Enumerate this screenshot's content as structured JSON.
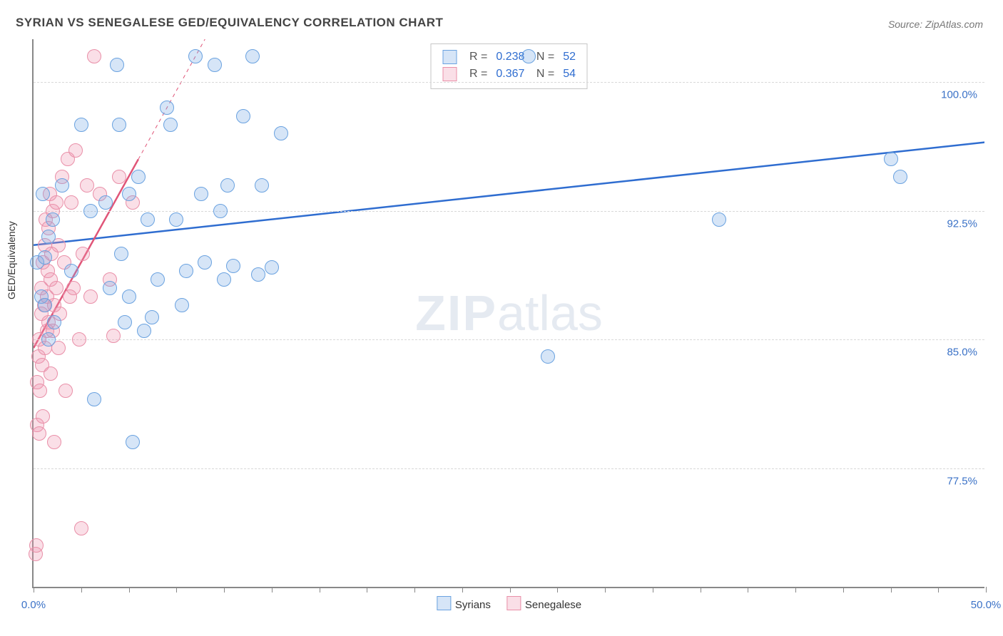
{
  "title": "SYRIAN VS SENEGALESE GED/EQUIVALENCY CORRELATION CHART",
  "source": "Source: ZipAtlas.com",
  "watermark_bold": "ZIP",
  "watermark_light": "atlas",
  "chart": {
    "type": "scatter",
    "ylabel": "GED/Equivalency",
    "xlim": [
      0,
      50
    ],
    "ylim": [
      70.5,
      102.5
    ],
    "x_ticks_minor_step": 2.5,
    "y_gridlines": [
      77.5,
      85.0,
      92.5,
      100.0
    ],
    "y_tick_labels": [
      "77.5%",
      "85.0%",
      "92.5%",
      "100.0%"
    ],
    "x_axis_labels": [
      {
        "pos": 0,
        "text": "0.0%"
      },
      {
        "pos": 50,
        "text": "50.0%"
      }
    ],
    "background_color": "#ffffff",
    "grid_color": "#d8d8d8",
    "axis_color": "#888888",
    "label_color": "#3b72c7",
    "series": [
      {
        "name": "Syrians",
        "fill": "rgba(120,170,230,0.30)",
        "stroke": "#6aa2e0",
        "trend_color": "#2f6dd0",
        "trend_width": 2.5,
        "trend_dash_after_data": false,
        "trend": {
          "x1": 0,
          "y1": 90.5,
          "x2": 50,
          "y2": 96.5
        },
        "stats": {
          "R": "0.238",
          "N": "52"
        },
        "points": [
          [
            0.2,
            89.5
          ],
          [
            0.4,
            87.5
          ],
          [
            0.5,
            93.5
          ],
          [
            0.6,
            89.8
          ],
          [
            0.6,
            87.0
          ],
          [
            0.8,
            91.0
          ],
          [
            0.8,
            85.0
          ],
          [
            1.0,
            92.0
          ],
          [
            1.1,
            86.0
          ],
          [
            1.5,
            94.0
          ],
          [
            2.0,
            89.0
          ],
          [
            2.5,
            97.5
          ],
          [
            3.0,
            92.5
          ],
          [
            3.2,
            81.5
          ],
          [
            3.8,
            93.0
          ],
          [
            4.0,
            88.0
          ],
          [
            4.4,
            101.0
          ],
          [
            4.5,
            97.5
          ],
          [
            4.6,
            90.0
          ],
          [
            4.8,
            86.0
          ],
          [
            5.0,
            93.5
          ],
          [
            5.0,
            87.5
          ],
          [
            5.2,
            79.0
          ],
          [
            5.5,
            94.5
          ],
          [
            5.8,
            85.5
          ],
          [
            6.0,
            92.0
          ],
          [
            6.2,
            86.3
          ],
          [
            6.5,
            88.5
          ],
          [
            7.0,
            98.5
          ],
          [
            7.2,
            97.5
          ],
          [
            7.5,
            92.0
          ],
          [
            7.8,
            87.0
          ],
          [
            8.0,
            89.0
          ],
          [
            8.5,
            101.5
          ],
          [
            8.8,
            93.5
          ],
          [
            9.0,
            89.5
          ],
          [
            9.5,
            101.0
          ],
          [
            9.8,
            92.5
          ],
          [
            10.0,
            88.5
          ],
          [
            10.2,
            94.0
          ],
          [
            10.5,
            89.3
          ],
          [
            11.0,
            98.0
          ],
          [
            11.5,
            101.5
          ],
          [
            11.8,
            88.8
          ],
          [
            12.0,
            94.0
          ],
          [
            12.5,
            89.2
          ],
          [
            13.0,
            97.0
          ],
          [
            26.0,
            101.5
          ],
          [
            27.0,
            84.0
          ],
          [
            36.0,
            92.0
          ],
          [
            45.0,
            95.5
          ],
          [
            45.5,
            94.5
          ]
        ]
      },
      {
        "name": "Senegalese",
        "fill": "rgba(240,150,175,0.30)",
        "stroke": "#e98fa8",
        "trend_color": "#e05578",
        "trend_width": 2.5,
        "trend_dash_after_data": true,
        "trend": {
          "x1": 0,
          "y1": 84.5,
          "x2": 5.5,
          "y2": 95.5,
          "x3": 9.0,
          "y3": 102.5
        },
        "stats": {
          "R": "0.367",
          "N": "54"
        },
        "points": [
          [
            0.1,
            72.5
          ],
          [
            0.15,
            73.0
          ],
          [
            0.2,
            80.0
          ],
          [
            0.2,
            82.5
          ],
          [
            0.25,
            84.0
          ],
          [
            0.3,
            79.5
          ],
          [
            0.3,
            85.0
          ],
          [
            0.35,
            82.0
          ],
          [
            0.4,
            86.5
          ],
          [
            0.4,
            88.0
          ],
          [
            0.45,
            83.5
          ],
          [
            0.5,
            89.5
          ],
          [
            0.5,
            80.5
          ],
          [
            0.55,
            87.0
          ],
          [
            0.6,
            90.5
          ],
          [
            0.6,
            84.5
          ],
          [
            0.65,
            92.0
          ],
          [
            0.7,
            87.5
          ],
          [
            0.7,
            85.5
          ],
          [
            0.75,
            89.0
          ],
          [
            0.8,
            91.5
          ],
          [
            0.8,
            86.0
          ],
          [
            0.85,
            93.5
          ],
          [
            0.9,
            88.5
          ],
          [
            0.9,
            83.0
          ],
          [
            0.95,
            90.0
          ],
          [
            1.0,
            85.5
          ],
          [
            1.0,
            92.5
          ],
          [
            1.1,
            87.0
          ],
          [
            1.1,
            79.0
          ],
          [
            1.2,
            93.0
          ],
          [
            1.2,
            88.0
          ],
          [
            1.3,
            84.5
          ],
          [
            1.3,
            90.5
          ],
          [
            1.4,
            86.5
          ],
          [
            1.5,
            94.5
          ],
          [
            1.6,
            89.5
          ],
          [
            1.7,
            82.0
          ],
          [
            1.8,
            95.5
          ],
          [
            1.9,
            87.5
          ],
          [
            2.0,
            93.0
          ],
          [
            2.1,
            88.0
          ],
          [
            2.2,
            96.0
          ],
          [
            2.4,
            85.0
          ],
          [
            2.5,
            74.0
          ],
          [
            2.6,
            90.0
          ],
          [
            2.8,
            94.0
          ],
          [
            3.0,
            87.5
          ],
          [
            3.2,
            101.5
          ],
          [
            3.5,
            93.5
          ],
          [
            4.0,
            88.5
          ],
          [
            4.2,
            85.2
          ],
          [
            4.5,
            94.5
          ],
          [
            5.2,
            93.0
          ]
        ]
      }
    ],
    "legend": [
      "Syrians",
      "Senegalese"
    ]
  }
}
